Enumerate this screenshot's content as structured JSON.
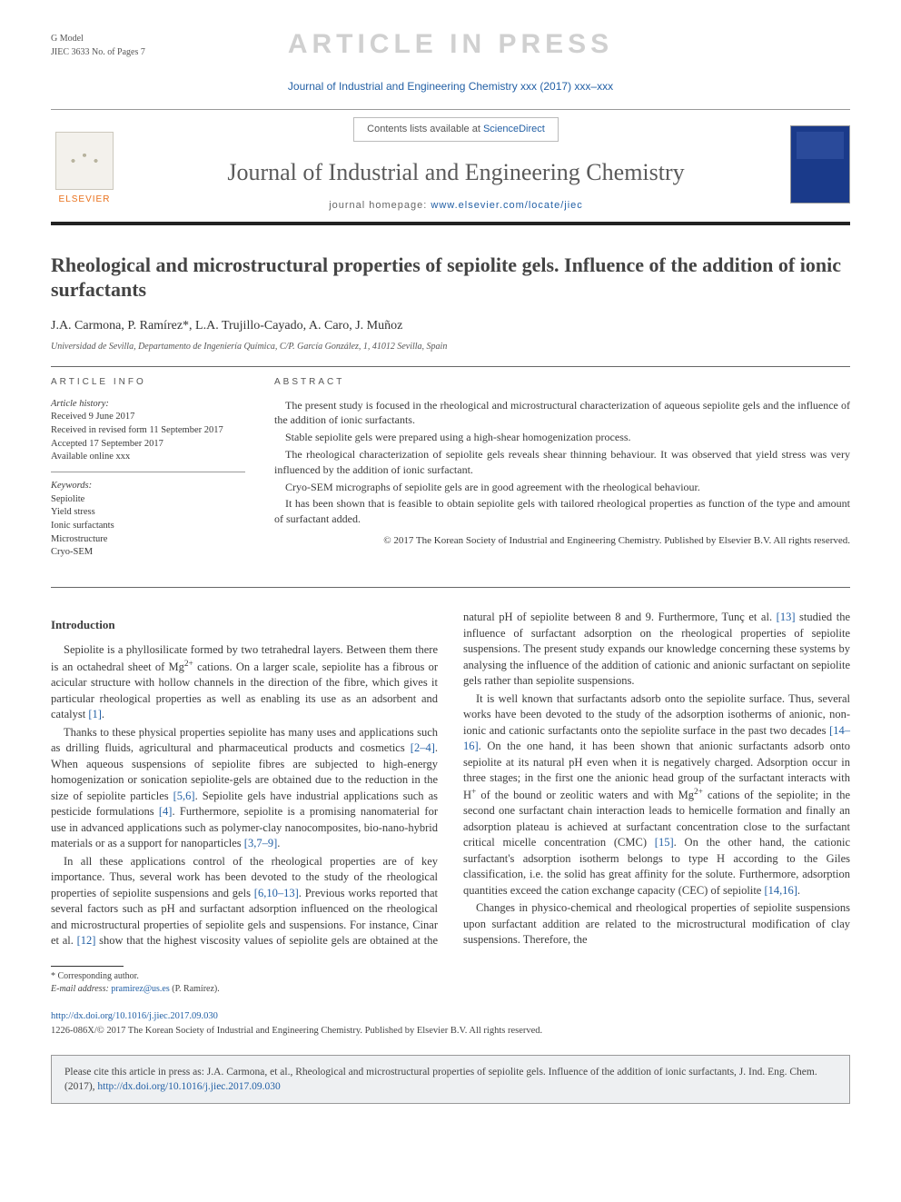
{
  "gmodel": {
    "label": "G Model",
    "code": "JIEC 3633 No. of Pages 7"
  },
  "watermark": "ARTICLE IN PRESS",
  "journal_ref": "Journal of Industrial and Engineering Chemistry xxx (2017) xxx–xxx",
  "header": {
    "contents_prefix": "Contents lists available at ",
    "contents_link": "ScienceDirect",
    "journal_title": "Journal of Industrial and Engineering Chemistry",
    "homepage_prefix": "journal homepage: ",
    "homepage_url": "www.elsevier.com/locate/jiec",
    "publisher": "ELSEVIER"
  },
  "title": "Rheological and microstructural properties of sepiolite gels. Influence of the addition of ionic surfactants",
  "authors": "J.A. Carmona, P. Ramírez*, L.A. Trujillo-Cayado, A. Caro, J. Muñoz",
  "affiliation": "Universidad de Sevilla, Departamento de Ingeniería Química, C/P. García González, 1, 41012 Sevilla, Spain",
  "info": {
    "head": "ARTICLE INFO",
    "history_label": "Article history:",
    "received": "Received 9 June 2017",
    "revised": "Received in revised form 11 September 2017",
    "accepted": "Accepted 17 September 2017",
    "online": "Available online xxx",
    "keywords_label": "Keywords:",
    "keywords": [
      "Sepiolite",
      "Yield stress",
      "Ionic surfactants",
      "Microstructure",
      "Cryo-SEM"
    ]
  },
  "abstract": {
    "head": "ABSTRACT",
    "p1": "The present study is focused in the rheological and microstructural characterization of aqueous sepiolite gels and the influence of the addition of ionic surfactants.",
    "p2": "Stable sepiolite gels were prepared using a high-shear homogenization process.",
    "p3": "The rheological characterization of sepiolite gels reveals shear thinning behaviour. It was observed that yield stress was very influenced by the addition of ionic surfactant.",
    "p4": "Cryo-SEM micrographs of sepiolite gels are in good agreement with the rheological behaviour.",
    "p5": "It has been shown that is feasible to obtain sepiolite gels with tailored rheological properties as function of the type and amount of surfactant added.",
    "copyright": "© 2017 The Korean Society of Industrial and Engineering Chemistry. Published by Elsevier B.V. All rights reserved."
  },
  "body": {
    "intro_head": "Introduction",
    "col1_p1_a": "Sepiolite is a phyllosilicate formed by two tetrahedral layers. Between them there is an octahedral sheet of Mg",
    "col1_p1_b": " cations. On a larger scale, sepiolite has a fibrous or acicular structure with hollow channels in the direction of the fibre, which gives it particular rheological properties as well as enabling its use as an adsorbent and catalyst ",
    "ref1": "[1]",
    "col1_p2_a": "Thanks to these physical properties sepiolite has many uses and applications such as drilling fluids, agricultural and pharmaceutical products and cosmetics ",
    "ref2_4": "[2–4]",
    "col1_p2_b": ". When aqueous suspensions of sepiolite fibres are subjected to high-energy homogenization or sonication sepiolite-gels are obtained due to the reduction in the size of sepiolite particles ",
    "ref5_6": "[5,6]",
    "col1_p2_c": ". Sepiolite gels have industrial applications such as pesticide formulations ",
    "ref4": "[4]",
    "col1_p2_d": ". Furthermore, sepiolite is a promising nanomaterial for use in advanced applications such as polymer-clay nanocomposites, bio-nano-hybrid materials or as a support for nanoparticles ",
    "ref3_7_9": "[3,7–9]",
    "col1_p3_a": "In all these applications control of the rheological properties are of key importance. Thus, several work has been devoted to the study of the rheological properties of sepiolite suspensions and gels ",
    "ref6_10_13": "[6,10–13]",
    "col1_p3_b": ". Previous works reported that several factors such as pH and surfactant adsorption influenced on the rheological and microstructural properties of sepiolite gels and suspensions. For ",
    "col2_p1_a": "instance, Cinar et al. ",
    "ref12": "[12]",
    "col2_p1_b": " show that the highest viscosity values of sepiolite gels are obtained at the natural pH of sepiolite between 8 and 9. Furthermore, Tunç et al. ",
    "ref13": "[13]",
    "col2_p1_c": " studied the influence of surfactant adsorption on the rheological properties of sepiolite suspensions. The present study expands our knowledge concerning these systems by analysing the influence of the addition of cationic and anionic surfactant on sepiolite gels rather than sepiolite suspensions.",
    "col2_p2_a": "It is well known that surfactants adsorb onto the sepiolite surface. Thus, several works have been devoted to the study of the adsorption isotherms of anionic, non-ionic and cationic surfactants onto the sepiolite surface in the past two decades ",
    "ref14_16": "[14–16]",
    "col2_p2_b": ". On the one hand, it has been shown that anionic surfactants adsorb onto sepiolite at its natural pH even when it is negatively charged. Adsorption occur in three stages; in the first one the anionic head group of the surfactant interacts with H",
    "col2_p2_c": " of the bound or zeolitic waters and with Mg",
    "col2_p2_d": " cations of the sepiolite; in the second one surfactant chain interaction leads to hemicelle formation and finally an adsorption plateau is achieved at surfactant concentration close to the surfactant critical micelle concentration (CMC) ",
    "ref15": "[15]",
    "col2_p2_e": ". On the other hand, the cationic surfactant's adsorption isotherm belongs to type H according to the Giles classification, i.e. the solid has great affinity for the solute. Furthermore, adsorption quantities exceed the cation exchange capacity (CEC) of sepiolite ",
    "ref14_16b": "[14,16]",
    "col2_p3": "Changes in physico-chemical and rheological properties of sepiolite suspensions upon surfactant addition are related to the microstructural modification of clay suspensions. Therefore, the"
  },
  "footnote": {
    "corresponding": "* Corresponding author.",
    "email_label": "E-mail address: ",
    "email": "pramirez@us.es",
    "email_who": " (P. Ramírez)."
  },
  "doi": {
    "url": "http://dx.doi.org/10.1016/j.jiec.2017.09.030",
    "issn": "1226-086X/© 2017 The Korean Society of Industrial and Engineering Chemistry. Published by Elsevier B.V. All rights reserved."
  },
  "citebox": {
    "text_a": "Please cite this article in press as: J.A. Carmona, et al., Rheological and microstructural properties of sepiolite gels. Influence of the addition of ionic surfactants, J. Ind. Eng. Chem. (2017), ",
    "link": "http://dx.doi.org/10.1016/j.jiec.2017.09.030"
  },
  "colors": {
    "link": "#2360a5",
    "watermark": "#d0d0d0",
    "elsevier_orange": "#e9711c",
    "rule_dark": "#222222"
  }
}
